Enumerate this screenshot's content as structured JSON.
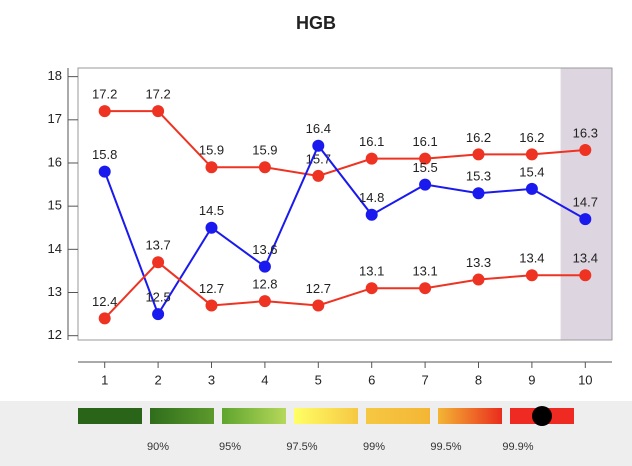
{
  "chart_data": {
    "type": "line",
    "title": "HGB",
    "categories": [
      "1",
      "2",
      "3",
      "4",
      "5",
      "6",
      "7",
      "8",
      "9",
      "10"
    ],
    "series": [
      {
        "color": "#ee3322",
        "values": [
          17.2,
          17.2,
          15.9,
          15.9,
          15.7,
          16.1,
          16.1,
          16.2,
          16.2,
          16.3
        ]
      },
      {
        "color": "#1a1aee",
        "values": [
          15.8,
          12.5,
          14.5,
          13.6,
          16.4,
          14.8,
          15.5,
          15.3,
          15.4,
          14.7
        ]
      },
      {
        "color": "#ee3322",
        "values": [
          12.4,
          13.7,
          12.7,
          12.8,
          12.7,
          13.1,
          13.1,
          13.3,
          13.4,
          13.4
        ]
      }
    ],
    "ylim": [
      11.9,
      18.2
    ],
    "yticks": [
      12,
      13,
      14,
      15,
      16,
      17,
      18
    ],
    "highlight": "10",
    "highlight_color": "#ddd5e0",
    "percentile_scale": {
      "labels": [
        "90%",
        "95%",
        "97.5%",
        "99%",
        "99.5%",
        "99.9%"
      ],
      "colors": [
        [
          "#2a6419",
          "#2a6419"
        ],
        [
          "#2f6d1c",
          "#5c9a2c"
        ],
        [
          "#5fa52e",
          "#b5d85a"
        ],
        [
          "#ffff66",
          "#f6c842"
        ],
        [
          "#f6c842",
          "#f3b634"
        ],
        [
          "#f3b634",
          "#ea2c1e"
        ],
        [
          "#ee2a22",
          "#ee2a22"
        ]
      ]
    }
  }
}
